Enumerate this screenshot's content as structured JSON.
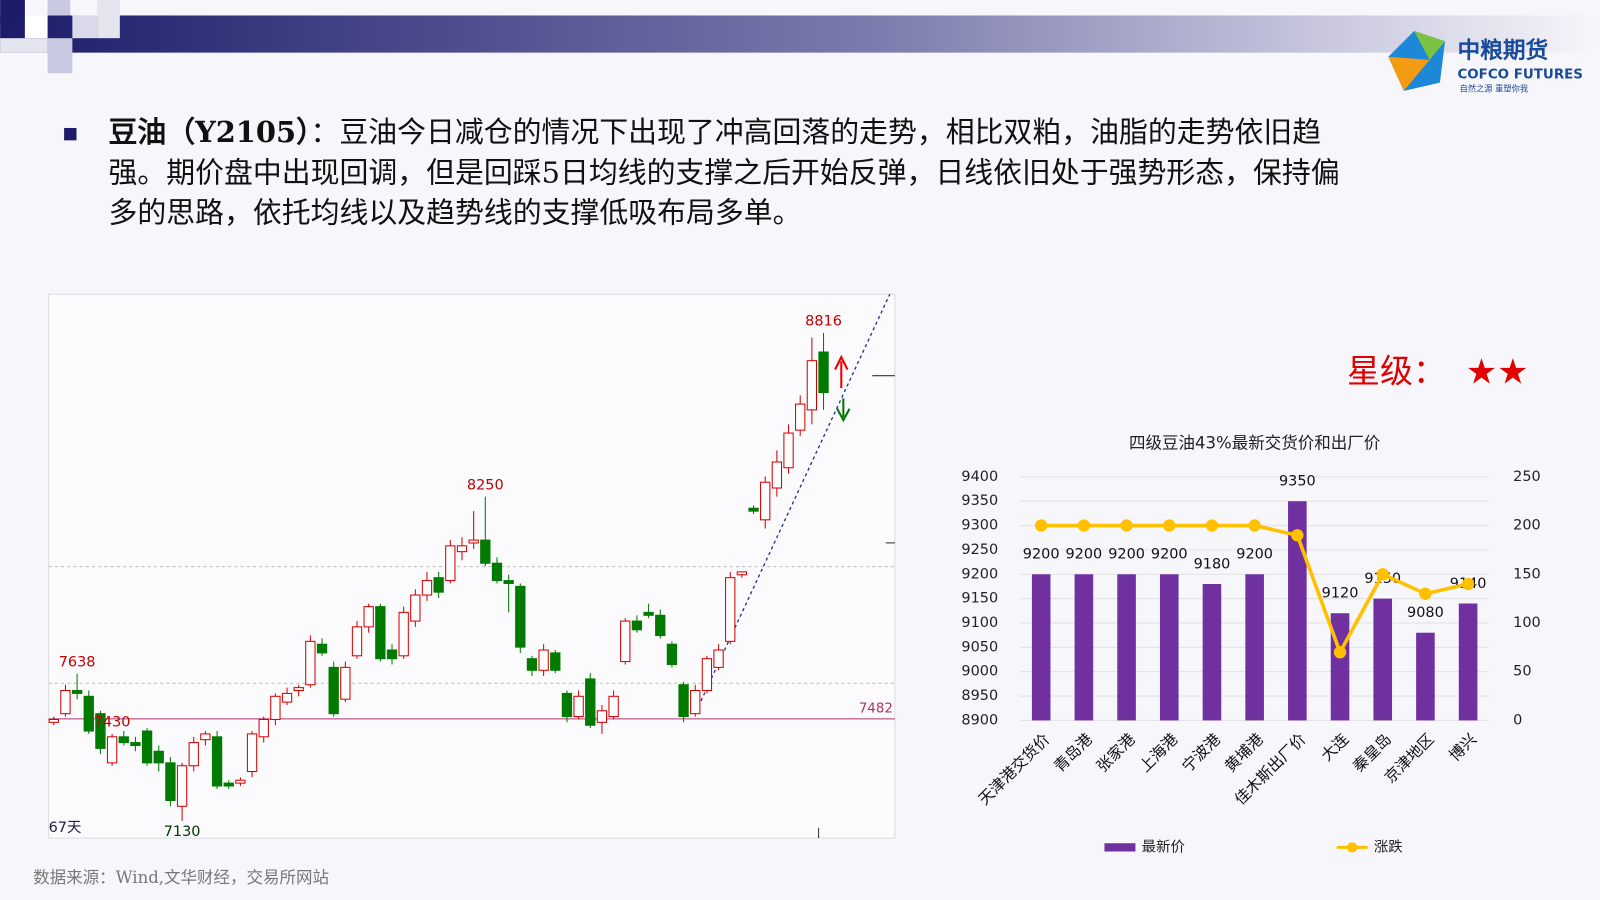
{
  "header": {
    "brand": "中粮期货",
    "brand_en": "COFCO FUTURES",
    "slogan": "自然之源 重塑你我"
  },
  "body": {
    "label": "豆油（Y2105）",
    "lines": [
      "：豆油今日减仓的情况下出现了冲高回落的走势，相比双粕，油脂的走势依旧趋",
      "强。期价盘中出现回调，但是回踩5日均线的支撑之后开始反弹，日线依旧处于强势形态，保持偏",
      "多的思路，依托均线以及趋势线的支撑低吸布局多单。"
    ]
  },
  "rating": {
    "label": "星级：",
    "stars": "★★"
  },
  "source": "数据来源：Wind,文华财经，交易所网站",
  "chart_data": [
    {
      "type": "candlestick",
      "period_label": "67天",
      "ylim": [
        7070,
        8950
      ],
      "up_color": "#d40000",
      "down_color": "#007a00",
      "level": 7482,
      "annotations": [
        8816,
        8250,
        7638,
        7430,
        7130
      ],
      "ohlc": [
        [
          7470,
          7490,
          7460,
          7480
        ],
        [
          7500,
          7600,
          7490,
          7580
        ],
        [
          7580,
          7638,
          7550,
          7570
        ],
        [
          7560,
          7580,
          7430,
          7440
        ],
        [
          7500,
          7510,
          7360,
          7380
        ],
        [
          7330,
          7430,
          7320,
          7420
        ],
        [
          7420,
          7440,
          7390,
          7400
        ],
        [
          7400,
          7420,
          7370,
          7390
        ],
        [
          7440,
          7450,
          7320,
          7330
        ],
        [
          7370,
          7390,
          7300,
          7330
        ],
        [
          7330,
          7350,
          7180,
          7200
        ],
        [
          7180,
          7330,
          7130,
          7320
        ],
        [
          7320,
          7420,
          7300,
          7400
        ],
        [
          7410,
          7440,
          7390,
          7430
        ],
        [
          7420,
          7440,
          7240,
          7250
        ],
        [
          7260,
          7270,
          7240,
          7250
        ],
        [
          7260,
          7280,
          7250,
          7270
        ],
        [
          7300,
          7440,
          7280,
          7430
        ],
        [
          7420,
          7490,
          7400,
          7480
        ],
        [
          7480,
          7570,
          7460,
          7560
        ],
        [
          7540,
          7590,
          7530,
          7570
        ],
        [
          7580,
          7600,
          7560,
          7590
        ],
        [
          7600,
          7770,
          7590,
          7750
        ],
        [
          7740,
          7760,
          7700,
          7710
        ],
        [
          7660,
          7680,
          7490,
          7500
        ],
        [
          7550,
          7680,
          7540,
          7660
        ],
        [
          7700,
          7820,
          7690,
          7800
        ],
        [
          7800,
          7880,
          7780,
          7870
        ],
        [
          7870,
          7880,
          7680,
          7690
        ],
        [
          7720,
          7740,
          7670,
          7690
        ],
        [
          7700,
          7870,
          7690,
          7850
        ],
        [
          7820,
          7930,
          7800,
          7910
        ],
        [
          7910,
          7990,
          7890,
          7960
        ],
        [
          7970,
          7990,
          7900,
          7920
        ],
        [
          7960,
          8100,
          7950,
          8080
        ],
        [
          8060,
          8110,
          8030,
          8080
        ],
        [
          8090,
          8200,
          8070,
          8100
        ],
        [
          8100,
          8250,
          8010,
          8020
        ],
        [
          8020,
          8040,
          7950,
          7960
        ],
        [
          7960,
          7980,
          7850,
          7950
        ],
        [
          7940,
          7950,
          7710,
          7730
        ],
        [
          7690,
          7700,
          7630,
          7650
        ],
        [
          7650,
          7740,
          7630,
          7720
        ],
        [
          7710,
          7720,
          7640,
          7650
        ],
        [
          7570,
          7580,
          7470,
          7490
        ],
        [
          7490,
          7580,
          7480,
          7560
        ],
        [
          7620,
          7640,
          7450,
          7460
        ],
        [
          7470,
          7530,
          7430,
          7510
        ],
        [
          7490,
          7580,
          7480,
          7560
        ],
        [
          7680,
          7830,
          7670,
          7820
        ],
        [
          7820,
          7840,
          7780,
          7790
        ],
        [
          7850,
          7880,
          7830,
          7840
        ],
        [
          7840,
          7860,
          7760,
          7770
        ],
        [
          7740,
          7750,
          7660,
          7670
        ],
        [
          7600,
          7610,
          7470,
          7490
        ],
        [
          7500,
          7600,
          7490,
          7580
        ],
        [
          7580,
          7700,
          7570,
          7690
        ],
        [
          7660,
          7740,
          7650,
          7720
        ],
        [
          7750,
          7990,
          7740,
          7970
        ],
        [
          7980,
          7990,
          7970,
          7990
        ],
        [
          8210,
          8220,
          8190,
          8200
        ],
        [
          8170,
          8320,
          8140,
          8300
        ],
        [
          8280,
          8410,
          8250,
          8370
        ],
        [
          8350,
          8500,
          8330,
          8470
        ],
        [
          8480,
          8600,
          8460,
          8570
        ],
        [
          8550,
          8800,
          8500,
          8720
        ],
        [
          8750,
          8816,
          8550,
          8610
        ]
      ]
    },
    {
      "type": "bar-line",
      "title": "四级豆油43%最新交货价和出厂价",
      "categories": [
        "天津港交货价",
        "青岛港",
        "张家港",
        "上海港",
        "宁波港",
        "黄埔港",
        "佳木斯出厂价",
        "大连",
        "秦皇岛",
        "京津地区",
        "博兴"
      ],
      "series": [
        {
          "name": "最新价",
          "type": "bar",
          "color": "#7030a0",
          "values": [
            9200,
            9200,
            9200,
            9200,
            9180,
            9200,
            9350,
            9120,
            9150,
            9080,
            9140
          ]
        },
        {
          "name": "涨跌",
          "type": "line",
          "axis": "y2",
          "color": "#ffc000",
          "values": [
            200,
            200,
            200,
            200,
            200,
            200,
            190,
            70,
            150,
            130,
            140
          ]
        }
      ],
      "ylim": [
        8900,
        9400
      ],
      "yticks": [
        8900,
        8950,
        9000,
        9050,
        9100,
        9150,
        9200,
        9250,
        9300,
        9350,
        9400
      ],
      "y2lim": [
        0,
        250
      ],
      "y2ticks": [
        0,
        50,
        100,
        150,
        200,
        250
      ],
      "grid": true
    }
  ]
}
